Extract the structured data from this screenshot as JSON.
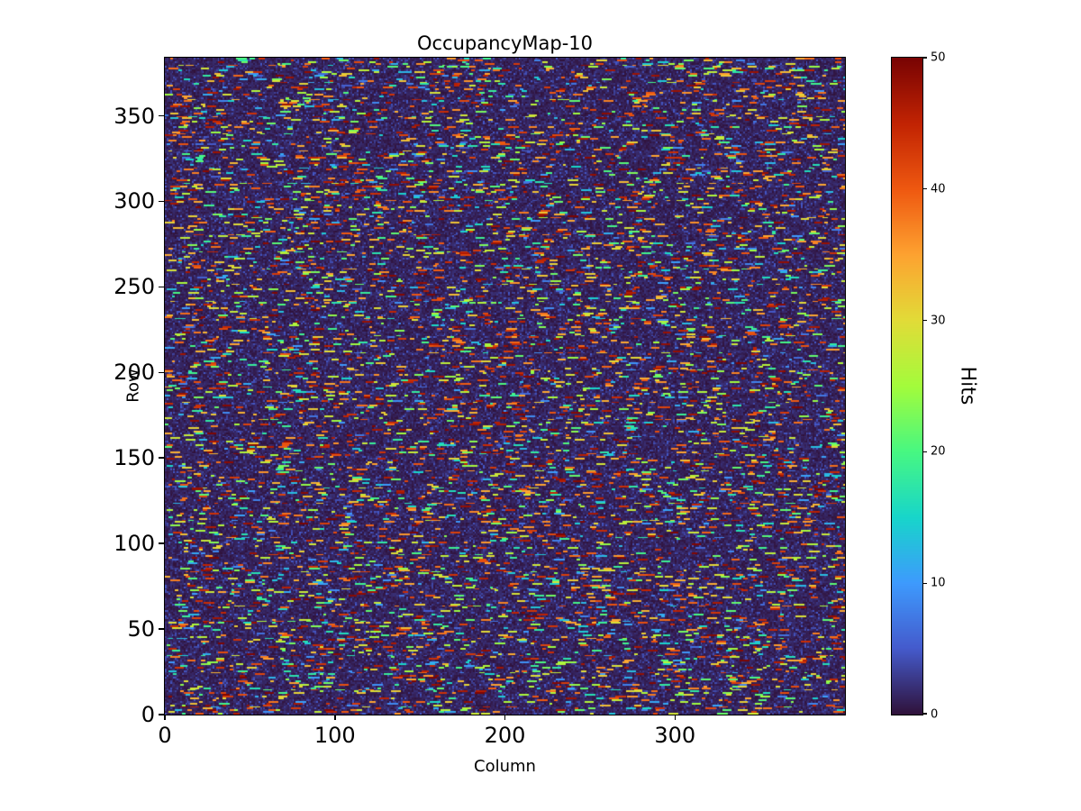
{
  "chart_data": {
    "type": "heatmap",
    "title": "OccupancyMap-10",
    "xlabel": "Column",
    "ylabel": "Row",
    "x_range": [
      0,
      400
    ],
    "y_range": [
      0,
      384
    ],
    "x_ticks": [
      0,
      100,
      200,
      300
    ],
    "y_ticks": [
      0,
      50,
      100,
      150,
      200,
      250,
      300,
      350
    ],
    "grid": {
      "cols": 400,
      "rows": 384
    },
    "colorbar": {
      "label": "Hits",
      "min": 0,
      "max": 50,
      "ticks": [
        0,
        10,
        20,
        30,
        40,
        50
      ]
    },
    "colormap": {
      "name": "turbo",
      "stops": [
        "#30123b",
        "#455bcd",
        "#3e9bfe",
        "#18d6cb",
        "#48f882",
        "#a4fc3c",
        "#e2dc38",
        "#fea331",
        "#ef5911",
        "#c22403",
        "#7a0403"
      ]
    },
    "data_model": {
      "description": "Random occupancy hit map: predominantly near-zero dark background (0-5 hits) with short horizontal streaks (2-6 columns wide) of hit counts spanning 4-50, roughly 16% coverage, uniformly scattered over all rows and columns",
      "seed": 10,
      "streak_probability": 0.045,
      "streak_length_range": [
        2,
        6
      ],
      "streak_hits_range": [
        4,
        50
      ],
      "background_hits_range": [
        0,
        5
      ]
    },
    "legend_position": "right-colorbar",
    "grid_lines": false
  }
}
